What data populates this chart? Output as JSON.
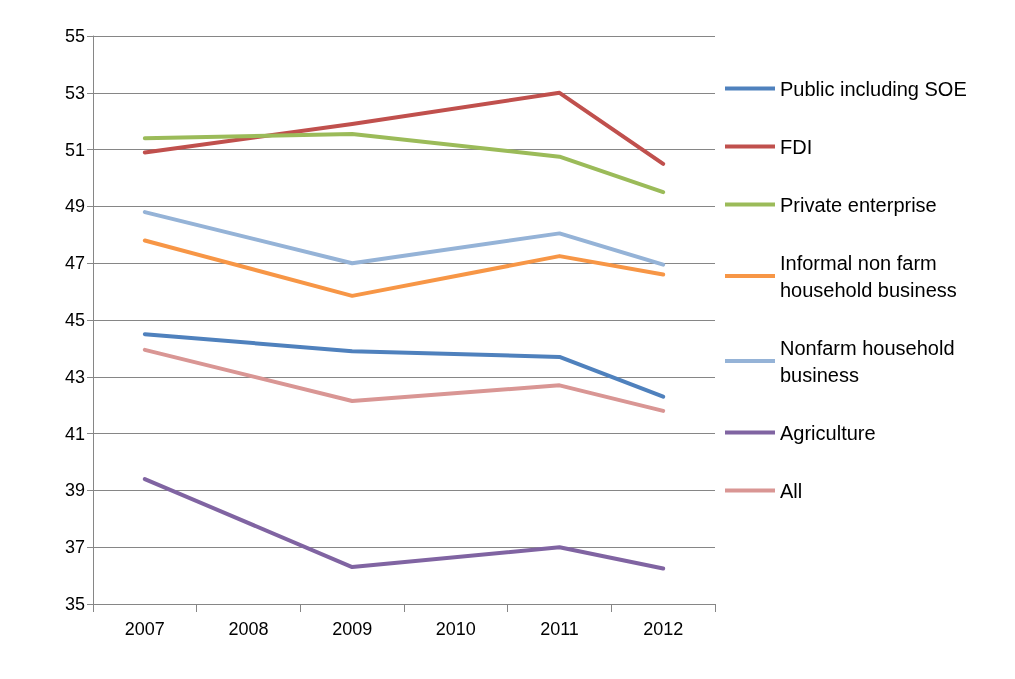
{
  "chart_data": {
    "type": "line",
    "categories": [
      "2007",
      "2008",
      "2009",
      "2010",
      "2011",
      "2012"
    ],
    "series": [
      {
        "name": "Public including SOE",
        "color": "#4f81bd",
        "values": [
          44.5,
          null,
          43.9,
          null,
          43.7,
          42.3
        ]
      },
      {
        "name": "FDI",
        "color": "#c0504d",
        "values": [
          50.9,
          null,
          51.9,
          null,
          53.0,
          50.5
        ]
      },
      {
        "name": "Private enterprise",
        "color": "#9bbb59",
        "values": [
          51.4,
          null,
          51.55,
          null,
          50.75,
          49.5
        ]
      },
      {
        "name": "Informal non farm household business",
        "color": "#f79646",
        "values": [
          47.8,
          null,
          45.85,
          null,
          47.25,
          46.6
        ]
      },
      {
        "name": "Nonfarm household business",
        "color": "#95b3d7",
        "values": [
          48.8,
          null,
          47.0,
          null,
          48.05,
          46.95
        ]
      },
      {
        "name": "Agriculture",
        "color": "#8064a2",
        "values": [
          39.4,
          null,
          36.3,
          null,
          37.0,
          36.25
        ]
      },
      {
        "name": "All",
        "color": "#d99694",
        "values": [
          43.95,
          null,
          42.15,
          null,
          42.7,
          41.8
        ]
      }
    ],
    "ylim": [
      35,
      55
    ],
    "yticks": [
      35,
      37,
      39,
      41,
      43,
      45,
      47,
      49,
      51,
      53,
      55
    ],
    "grid": "y",
    "legend": "right",
    "marker": "none",
    "line_style": "solid"
  }
}
